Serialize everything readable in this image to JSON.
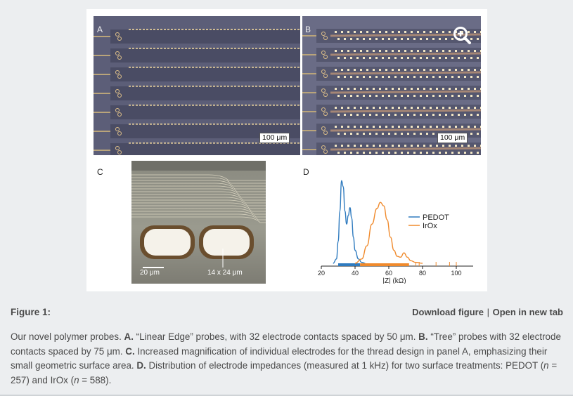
{
  "figure": {
    "panels": {
      "A": {
        "letter": "A",
        "scale_label": "100 μm"
      },
      "B": {
        "letter": "B",
        "scale_label": "100 μm"
      },
      "C": {
        "letter": "C",
        "scale_left": "20 μm",
        "scale_right": "14 x 24 μm"
      },
      "D": {
        "letter": "D"
      }
    },
    "colors": {
      "pedot": "#2f7bbf",
      "irox": "#f08a2c"
    },
    "icons": {
      "zoom": "zoom-in-icon"
    }
  },
  "caption": {
    "title": "Figure 1:",
    "download_label": "Download figure",
    "separator": "|",
    "open_label": "Open in new tab",
    "intro": "Our novel polymer probes.",
    "a_label": "A.",
    "a_text": "“Linear Edge” probes, with 32 electrode contacts spaced by 50 μm.",
    "b_label": "B.",
    "b_text": "“Tree” probes with 32 electrode contacts spaced by 75 μm.",
    "c_label": "C.",
    "c_text": "Increased magnification of individual electrodes for the thread design in panel A, emphasizing their small geometric surface area.",
    "d_label": "D.",
    "d_text_1": "Distribution of electrode impedances (measured at 1 kHz) for two surface treatments: PEDOT (",
    "n_symbol": "n",
    "d_text_2": " = 257) and IrOx (",
    "d_text_3": " = 588)."
  },
  "chart_data": {
    "type": "area",
    "title": "",
    "xlabel": "|Z| (kΩ)",
    "ylabel": "",
    "xlim": [
      20,
      110
    ],
    "xticks": [
      20,
      40,
      60,
      80,
      100
    ],
    "grid": false,
    "legend_position": "top-right",
    "series": [
      {
        "name": "PEDOT",
        "color": "#2f7bbf",
        "x": [
          27,
          29,
          30,
          31,
          32,
          33,
          34,
          35,
          36,
          37,
          38,
          39,
          40,
          42,
          44,
          46
        ],
        "density": [
          0.0,
          0.05,
          0.25,
          0.6,
          0.95,
          0.88,
          0.6,
          0.45,
          0.55,
          0.64,
          0.52,
          0.3,
          0.15,
          0.05,
          0.01,
          0.0
        ],
        "rug_range": [
          30,
          43
        ]
      },
      {
        "name": "IrOx",
        "color": "#f08a2c",
        "x": [
          40,
          44,
          47,
          50,
          53,
          55,
          57,
          59,
          61,
          63,
          65,
          67,
          69,
          71,
          73,
          76,
          80
        ],
        "density": [
          0.0,
          0.05,
          0.2,
          0.45,
          0.63,
          0.7,
          0.66,
          0.5,
          0.3,
          0.15,
          0.08,
          0.07,
          0.12,
          0.07,
          0.03,
          0.01,
          0.0
        ],
        "rug_range": [
          43,
          72
        ],
        "rug_outliers": [
          76,
          78,
          88,
          96,
          100
        ]
      }
    ]
  }
}
